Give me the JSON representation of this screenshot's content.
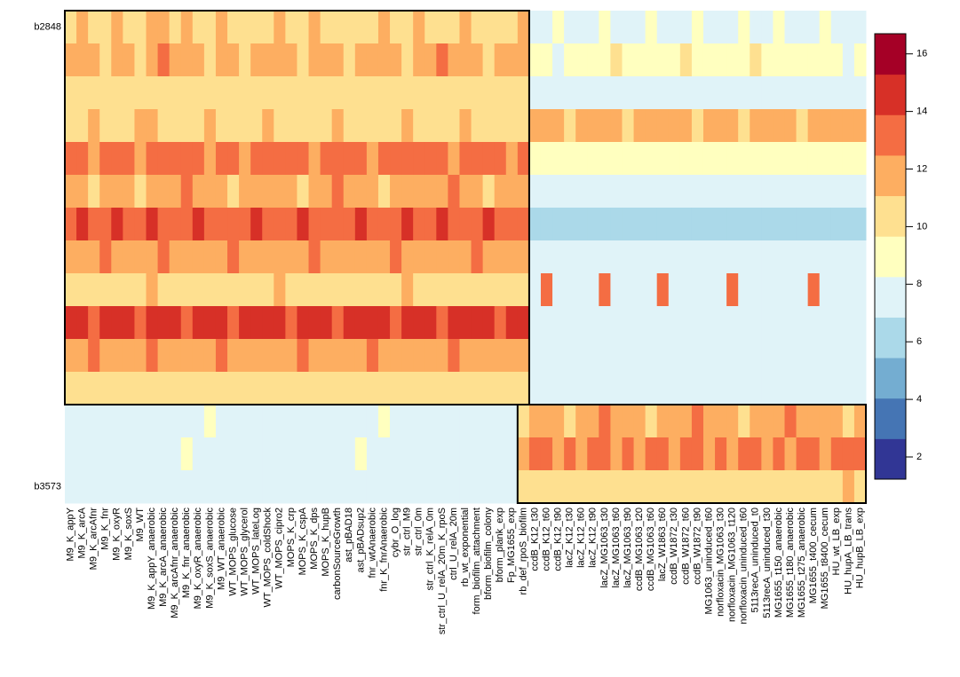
{
  "chart_data": {
    "type": "heatmap",
    "rows": [
      "b2848",
      null,
      null,
      null,
      null,
      null,
      null,
      null,
      null,
      null,
      null,
      null,
      null,
      null,
      "b3573"
    ],
    "columns": [
      "M9_K_appY",
      "M9_K_arcA",
      "M9_K_arcAfnr",
      "M9_K_fnr",
      "M9_K_oxyR",
      "M9_K_soxS",
      "M9_WT",
      "M9_K_appY_anaerobic",
      "M9_K_arcA_anaerobic",
      "M9_K_arcAfnr_anaerobic",
      "M9_K_fnr_anaerobic",
      "M9_K_oxyR_anaerobic",
      "M9_K_soxS_anaerobic",
      "M9_WT_anaerobic",
      "WT_MOPS_glucose",
      "WT_MOPS_glycerol",
      "WT_MOPS_lateLog",
      "WT_MOPS_coldShock",
      "WT_MOPS_cipro2",
      "MOPS_K_crp",
      "MOPS_K_cspA",
      "MOPS_K_dps",
      "MOPS_K_hupB",
      "carbonSourceGrowth",
      "ast_pBAD18",
      "ast_pBADsup2",
      "fnr_wtAnaerobic",
      "fnr_K_fnrAnaerobic",
      "cybr_O_log",
      "str_ctrl_M9",
      "str_ctrl_0m",
      "str_ctrl_K_relA_0m",
      "str_ctrl_U_relA_20m_K_rpoS",
      "ctrl_U_relA_20m",
      "rb_wt_exponential",
      "form_biofilm_attachment",
      "bform_biofilm_colony",
      "bform_plank_exp",
      "Fp_MG1655_exp",
      "rb_def_rpoS_biofilm",
      "ccdB_K12_t30",
      "ccdB_K12_t60",
      "ccdB_K12_t90",
      "lacZ_K12_t30",
      "lacZ_K12_t60",
      "lacZ_K12_t90",
      "lacZ_MG1063_t30",
      "lacZ_MG1063_t60",
      "lacZ_MG1063_t90",
      "ccdB_MG1063_t20",
      "ccdB_MG1063_t60",
      "lacZ_W1863_t60",
      "ccdB_W1872_t30",
      "ccdB_W1872_t60",
      "ccdB_W1872_t90",
      "MG1063_uninduced_t60",
      "norfloxacin_MG1063_t30",
      "norfloxacin_MG1063_t120",
      "norfloxacin_uninduced_t60",
      "5113recA_uninduced_t0",
      "5113recA_uninduced_t30",
      "MG1655_t150_anaerobic",
      "MG1655_t180_anaerobic",
      "MG1655_t275_anaerobic",
      "MG1655_t400_cecum",
      "MG1655_t8400_cecum",
      "HU_wt_LB_exp",
      "HU_hupA_LB_trans",
      "HU_hupB_LB_exp"
    ],
    "values": [
      [
        11,
        12,
        11,
        11,
        12,
        11,
        11,
        12,
        12,
        11,
        12,
        11,
        11,
        12,
        11,
        10,
        11,
        11,
        12,
        11,
        11,
        12,
        11,
        11,
        10,
        11,
        11,
        12,
        11,
        11,
        12,
        11,
        11,
        11,
        12,
        11,
        11,
        10,
        11,
        12,
        8,
        8,
        9,
        8,
        8,
        8,
        9,
        8,
        8,
        8,
        9,
        8,
        8,
        8,
        9,
        8,
        8,
        8,
        9,
        8,
        8,
        9,
        8,
        8,
        8,
        9,
        8,
        8,
        8
      ],
      [
        12,
        12,
        12,
        11,
        12,
        12,
        11,
        12,
        13,
        12,
        12,
        12,
        11,
        12,
        12,
        11,
        12,
        12,
        12,
        12,
        11,
        12,
        12,
        12,
        11,
        12,
        12,
        12,
        12,
        11,
        12,
        12,
        13,
        12,
        12,
        12,
        11,
        12,
        12,
        12,
        9,
        9,
        8,
        9,
        9,
        9,
        9,
        10,
        9,
        9,
        9,
        9,
        9,
        11,
        9,
        9,
        9,
        9,
        9,
        10,
        9,
        9,
        9,
        9,
        9,
        9,
        9,
        8,
        9
      ],
      [
        10,
        10,
        11,
        10,
        10,
        11,
        10,
        11,
        11,
        10,
        10,
        11,
        10,
        10,
        10,
        10,
        11,
        10,
        10,
        10,
        10,
        10,
        11,
        10,
        10,
        10,
        10,
        11,
        10,
        10,
        10,
        10,
        11,
        10,
        10,
        10,
        10,
        10,
        11,
        10,
        8,
        7,
        8,
        8,
        8,
        8,
        8,
        8,
        7,
        8,
        8,
        8,
        8,
        8,
        8,
        8,
        8,
        7,
        8,
        8,
        8,
        8,
        8,
        8,
        7,
        8,
        8,
        8,
        8
      ],
      [
        11,
        11,
        12,
        11,
        11,
        11,
        12,
        12,
        11,
        11,
        11,
        11,
        12,
        11,
        11,
        11,
        11,
        12,
        11,
        11,
        11,
        11,
        11,
        12,
        11,
        11,
        11,
        11,
        11,
        12,
        11,
        11,
        11,
        11,
        12,
        11,
        11,
        11,
        11,
        11,
        12,
        12,
        12,
        11,
        12,
        12,
        12,
        12,
        11,
        12,
        12,
        12,
        12,
        12,
        11,
        12,
        12,
        12,
        11,
        12,
        12,
        12,
        12,
        11,
        12,
        12,
        12,
        12,
        12
      ],
      [
        13,
        13,
        12,
        13,
        13,
        13,
        12,
        13,
        13,
        13,
        13,
        13,
        12,
        13,
        13,
        12,
        13,
        13,
        13,
        13,
        13,
        12,
        13,
        13,
        13,
        13,
        12,
        13,
        13,
        13,
        13,
        13,
        13,
        12,
        13,
        13,
        13,
        13,
        12,
        13,
        9,
        9,
        9,
        9,
        9,
        9,
        9,
        9,
        9,
        9,
        9,
        9,
        9,
        9,
        9,
        9,
        9,
        9,
        9,
        9,
        9,
        9,
        9,
        9,
        9,
        9,
        9,
        9,
        9
      ],
      [
        12,
        12,
        11,
        12,
        12,
        12,
        11,
        12,
        12,
        12,
        13,
        12,
        12,
        12,
        11,
        12,
        12,
        12,
        12,
        12,
        11,
        12,
        12,
        13,
        12,
        12,
        12,
        11,
        12,
        12,
        12,
        12,
        12,
        13,
        12,
        12,
        11,
        12,
        12,
        12,
        8,
        7,
        8,
        8,
        7,
        8,
        8,
        7,
        8,
        8,
        7,
        8,
        8,
        8,
        7,
        8,
        8,
        7,
        8,
        8,
        8,
        7,
        8,
        8,
        7,
        8,
        8,
        8,
        7
      ],
      [
        13,
        14,
        13,
        13,
        14,
        13,
        13,
        14,
        13,
        13,
        13,
        14,
        13,
        13,
        13,
        13,
        14,
        13,
        13,
        13,
        14,
        13,
        13,
        13,
        13,
        14,
        13,
        13,
        13,
        14,
        13,
        13,
        14,
        13,
        13,
        13,
        14,
        13,
        13,
        13,
        6,
        6,
        6,
        6,
        6,
        6,
        6,
        6,
        6,
        6,
        6,
        6,
        6,
        6,
        6,
        6,
        6,
        6,
        6,
        6,
        6,
        6,
        6,
        6,
        6,
        6,
        6,
        6,
        6
      ],
      [
        12,
        12,
        12,
        13,
        12,
        12,
        12,
        12,
        13,
        12,
        12,
        12,
        12,
        12,
        13,
        12,
        12,
        12,
        12,
        12,
        12,
        13,
        12,
        12,
        12,
        12,
        12,
        12,
        13,
        12,
        12,
        12,
        12,
        12,
        12,
        13,
        12,
        12,
        12,
        12,
        8,
        8,
        8,
        8,
        8,
        8,
        8,
        8,
        8,
        8,
        8,
        8,
        8,
        8,
        8,
        8,
        8,
        8,
        8,
        8,
        8,
        8,
        8,
        8,
        8,
        8,
        8,
        8,
        8
      ],
      [
        11,
        11,
        11,
        11,
        11,
        11,
        11,
        12,
        11,
        11,
        11,
        11,
        11,
        11,
        11,
        11,
        11,
        11,
        12,
        11,
        11,
        11,
        11,
        11,
        11,
        11,
        11,
        11,
        11,
        12,
        11,
        11,
        11,
        11,
        11,
        11,
        11,
        11,
        11,
        11,
        8,
        13,
        8,
        8,
        7,
        8,
        13,
        8,
        8,
        8,
        8,
        13,
        8,
        8,
        8,
        7,
        8,
        13,
        8,
        8,
        8,
        7,
        8,
        8,
        13,
        8,
        8,
        8,
        8
      ],
      [
        14,
        14,
        13,
        14,
        14,
        14,
        13,
        14,
        14,
        14,
        13,
        14,
        14,
        14,
        13,
        14,
        14,
        14,
        14,
        13,
        14,
        14,
        14,
        13,
        14,
        14,
        14,
        14,
        13,
        14,
        14,
        14,
        13,
        14,
        14,
        14,
        14,
        13,
        14,
        14,
        8,
        8,
        8,
        8,
        8,
        8,
        8,
        8,
        8,
        8,
        8,
        8,
        8,
        8,
        8,
        8,
        8,
        8,
        8,
        8,
        8,
        8,
        8,
        8,
        8,
        8,
        8,
        8,
        8
      ],
      [
        12,
        12,
        13,
        12,
        12,
        12,
        12,
        13,
        12,
        12,
        12,
        12,
        12,
        13,
        12,
        12,
        12,
        12,
        12,
        12,
        13,
        12,
        12,
        12,
        12,
        12,
        13,
        12,
        12,
        12,
        12,
        12,
        12,
        13,
        12,
        12,
        12,
        12,
        12,
        12,
        7,
        8,
        8,
        7,
        8,
        8,
        7,
        8,
        8,
        7,
        8,
        8,
        7,
        8,
        8,
        7,
        8,
        8,
        7,
        8,
        8,
        7,
        8,
        8,
        7,
        8,
        8,
        7,
        8
      ],
      [
        11,
        11,
        11,
        10,
        11,
        11,
        11,
        11,
        10,
        11,
        11,
        11,
        11,
        11,
        10,
        11,
        11,
        11,
        11,
        10,
        11,
        11,
        11,
        11,
        11,
        10,
        11,
        11,
        11,
        11,
        10,
        11,
        11,
        11,
        11,
        11,
        10,
        11,
        11,
        11,
        8,
        8,
        8,
        8,
        8,
        8,
        8,
        8,
        8,
        8,
        8,
        8,
        8,
        8,
        8,
        8,
        8,
        8,
        8,
        8,
        8,
        8,
        8,
        8,
        8,
        8,
        8,
        8,
        8
      ],
      [
        8,
        7,
        8,
        8,
        7,
        8,
        8,
        8,
        7,
        8,
        8,
        8,
        9,
        8,
        8,
        8,
        7,
        8,
        8,
        8,
        8,
        8,
        7,
        8,
        8,
        8,
        8,
        9,
        8,
        8,
        8,
        7,
        8,
        8,
        8,
        8,
        8,
        7,
        8,
        11,
        12,
        12,
        12,
        11,
        12,
        12,
        13,
        12,
        12,
        12,
        11,
        12,
        12,
        12,
        13,
        12,
        12,
        12,
        11,
        12,
        12,
        12,
        13,
        12,
        12,
        12,
        12,
        11,
        12
      ],
      [
        7,
        8,
        8,
        7,
        8,
        8,
        8,
        7,
        8,
        8,
        9,
        8,
        8,
        7,
        8,
        8,
        8,
        8,
        7,
        8,
        8,
        8,
        8,
        7,
        8,
        9,
        8,
        8,
        8,
        7,
        8,
        8,
        8,
        8,
        7,
        8,
        8,
        8,
        8,
        12,
        13,
        13,
        12,
        13,
        12,
        13,
        13,
        12,
        13,
        12,
        13,
        13,
        12,
        13,
        13,
        12,
        13,
        12,
        13,
        13,
        12,
        13,
        12,
        13,
        13,
        12,
        13,
        13,
        13
      ],
      [
        8,
        8,
        7,
        8,
        8,
        8,
        7,
        8,
        8,
        8,
        8,
        7,
        8,
        8,
        8,
        8,
        7,
        8,
        8,
        8,
        8,
        7,
        8,
        8,
        8,
        8,
        7,
        8,
        8,
        8,
        8,
        7,
        8,
        8,
        8,
        8,
        7,
        8,
        8,
        11,
        11,
        10,
        11,
        11,
        11,
        10,
        11,
        11,
        11,
        11,
        10,
        11,
        11,
        11,
        10,
        11,
        11,
        11,
        11,
        10,
        11,
        11,
        11,
        10,
        11,
        11,
        11,
        12,
        11
      ]
    ],
    "colorbar": {
      "lim": [
        1.23,
        16.7
      ],
      "ticks": [
        2,
        4,
        6,
        8,
        10,
        12,
        14,
        16
      ],
      "colors": [
        "#313695",
        "#4575b4",
        "#74add1",
        "#abd9e9",
        "#e0f3f8",
        "#ffffbf",
        "#fee090",
        "#fdae61",
        "#f46d43",
        "#d73027",
        "#a50026"
      ]
    },
    "boxes": [
      {
        "rows": [
          0,
          11
        ],
        "cols": [
          0,
          39
        ]
      },
      {
        "rows": [
          12,
          14
        ],
        "cols": [
          39,
          68
        ]
      }
    ]
  }
}
